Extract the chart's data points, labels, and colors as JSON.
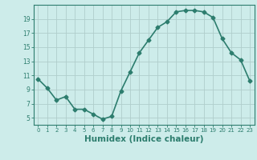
{
  "x": [
    0,
    1,
    2,
    3,
    4,
    5,
    6,
    7,
    8,
    9,
    10,
    11,
    12,
    13,
    14,
    15,
    16,
    17,
    18,
    19,
    20,
    21,
    22,
    23
  ],
  "y": [
    10.5,
    9.2,
    7.5,
    8.0,
    6.2,
    6.2,
    5.5,
    4.8,
    5.2,
    8.8,
    11.5,
    14.2,
    16.0,
    17.8,
    18.6,
    20.0,
    20.2,
    20.2,
    20.0,
    19.2,
    16.2,
    14.2,
    13.2,
    10.2
  ],
  "line_color": "#2d7d6e",
  "marker": "D",
  "markersize": 2.5,
  "bg_color": "#cdecea",
  "grid_color": "#b0cecc",
  "axis_color": "#2d7d6e",
  "xlabel": "Humidex (Indice chaleur)",
  "xlabel_fontsize": 7.5,
  "yticks": [
    5,
    7,
    9,
    11,
    13,
    15,
    17,
    19
  ],
  "xticks": [
    0,
    1,
    2,
    3,
    4,
    5,
    6,
    7,
    8,
    9,
    10,
    11,
    12,
    13,
    14,
    15,
    16,
    17,
    18,
    19,
    20,
    21,
    22,
    23
  ],
  "ylim": [
    4.0,
    21.0
  ],
  "xlim": [
    -0.5,
    23.5
  ],
  "linewidth": 1.2
}
